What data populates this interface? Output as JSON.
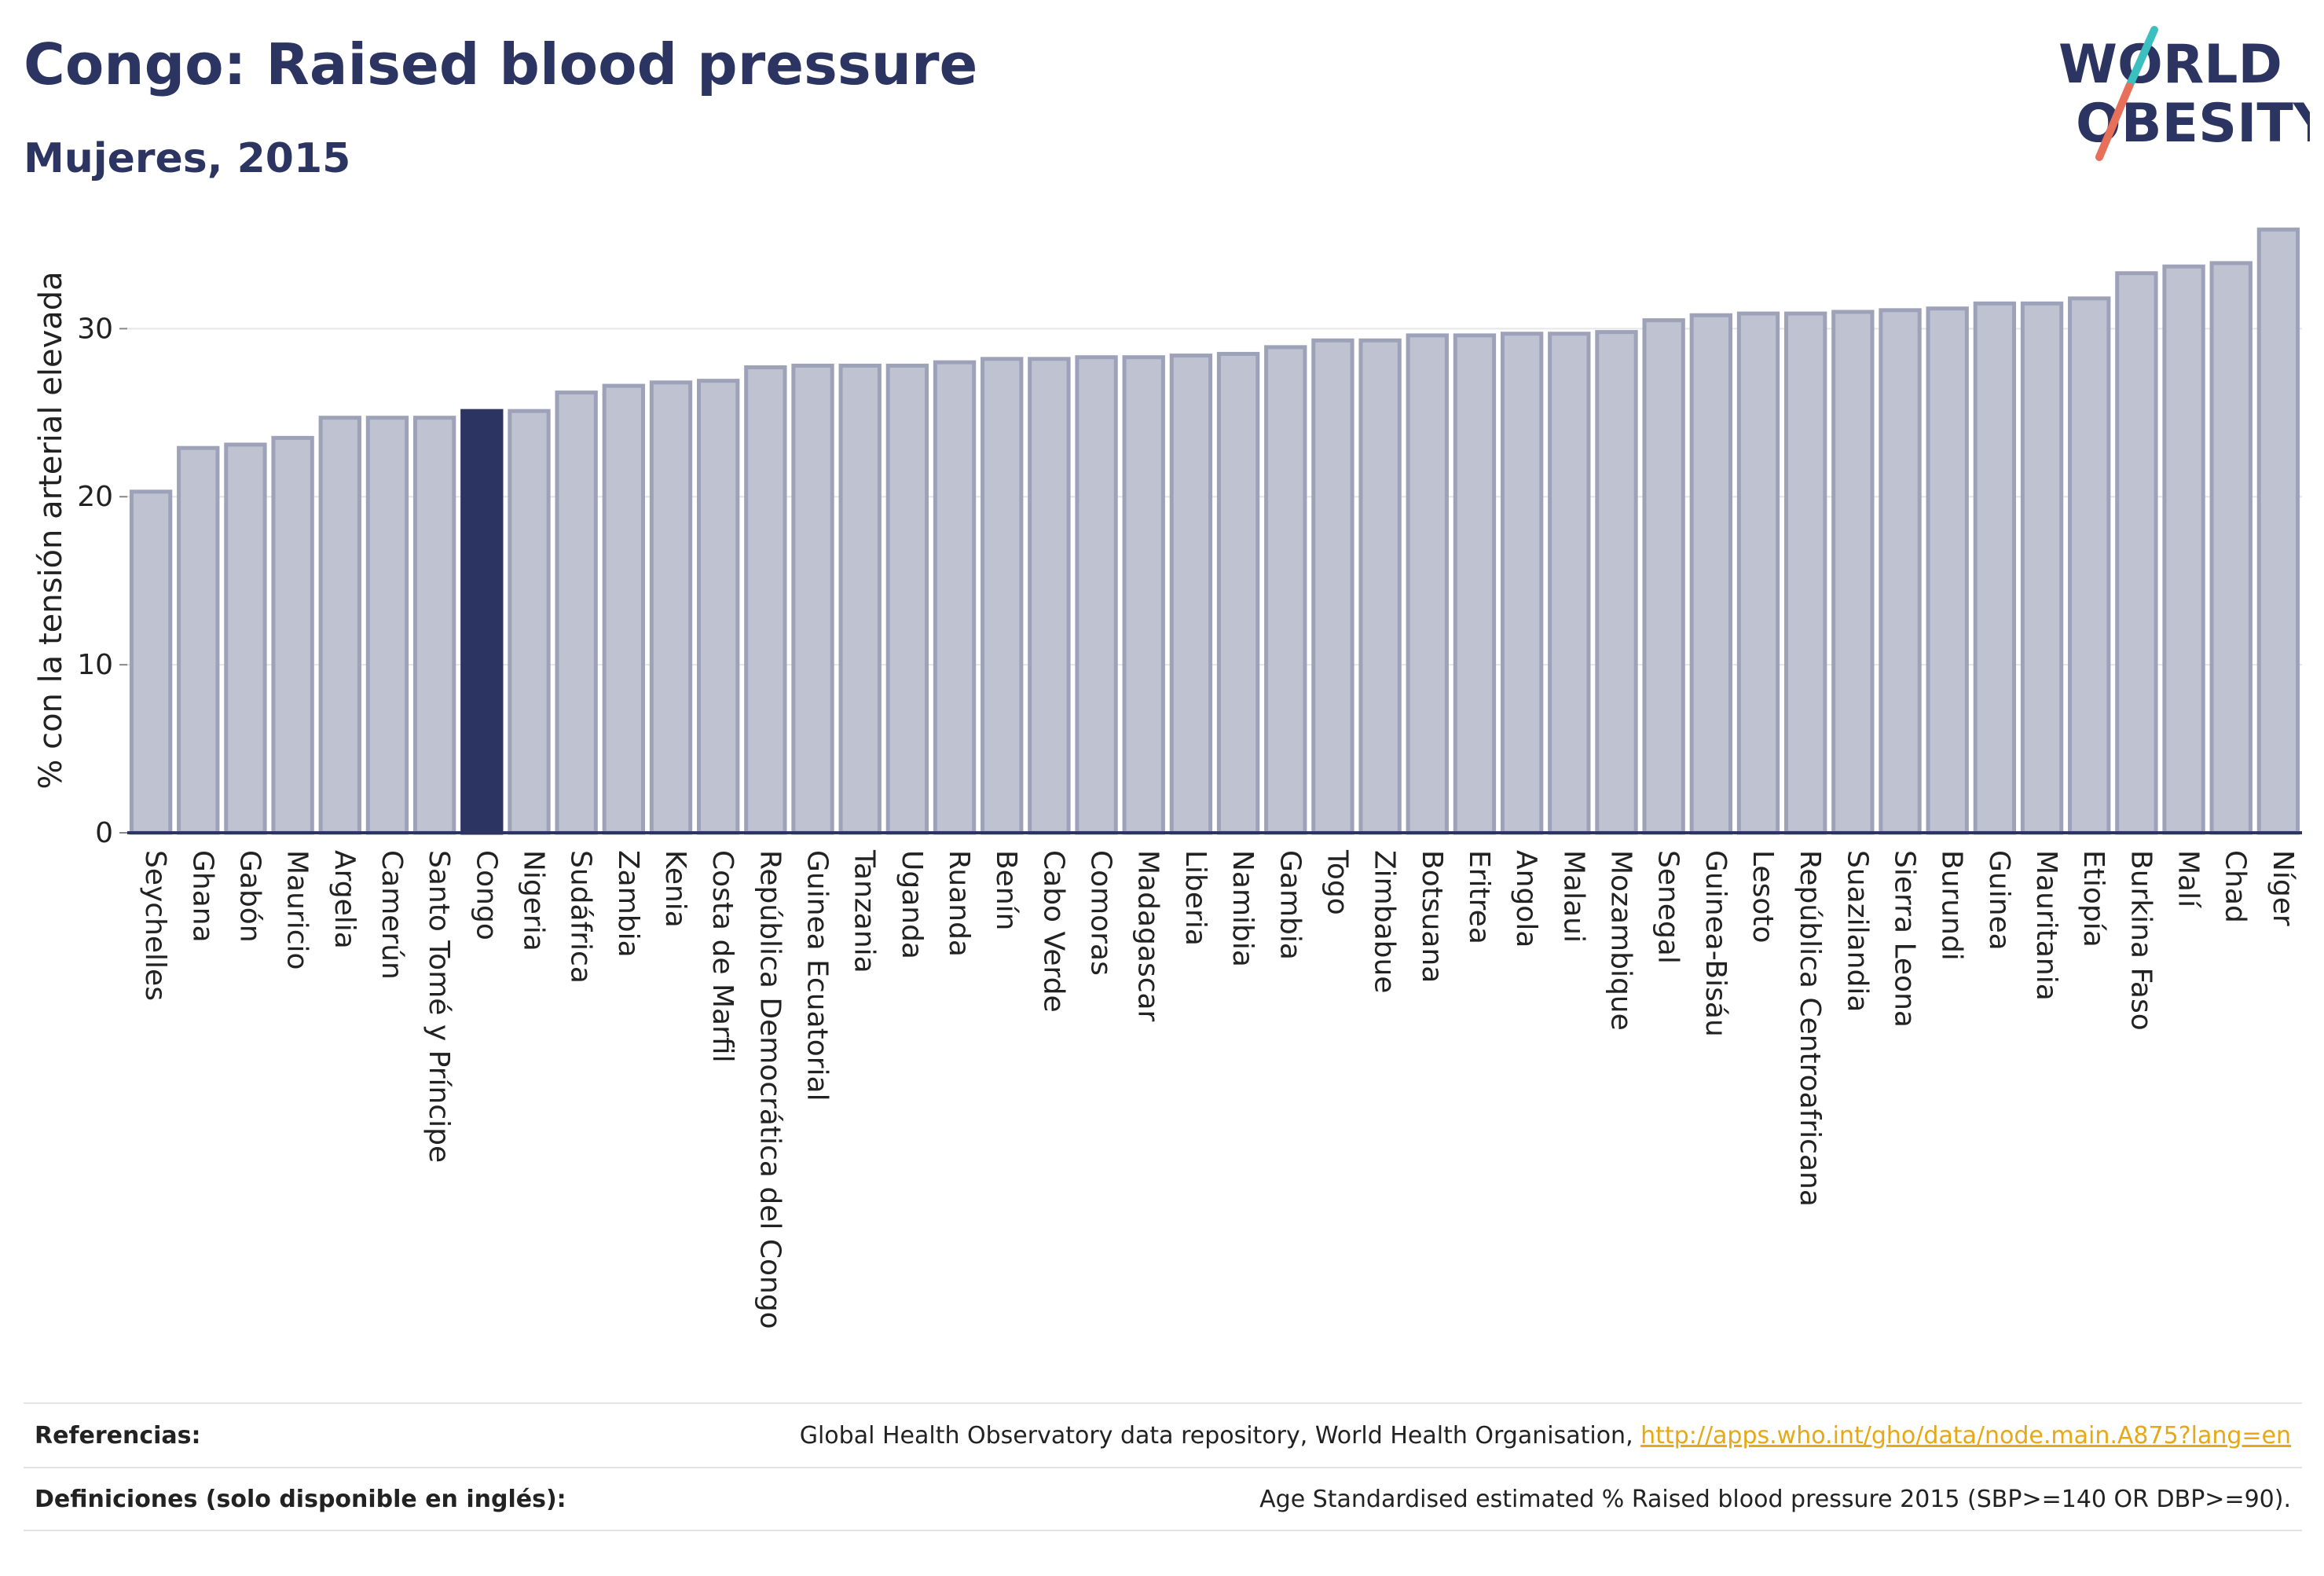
{
  "header": {
    "title": "Congo: Raised blood pressure",
    "subtitle": "Mujeres, 2015"
  },
  "logo": {
    "line1": "WORLD",
    "line2": "OBESITY",
    "colors": {
      "text": "#2c3561",
      "slash_teal": "#3bbfbf",
      "slash_coral": "#e8705a"
    }
  },
  "chart_data": {
    "type": "bar",
    "ylabel": "% con la tensión arterial elevada",
    "ylim": [
      0,
      36
    ],
    "yticks": [
      0,
      10,
      20,
      30
    ],
    "grid": true,
    "highlight": "Congo",
    "colors": {
      "bar": "#bfc2d0",
      "bar_border": "#9da2b8",
      "highlight": "#2c3561"
    },
    "categories": [
      "Seychelles",
      "Ghana",
      "Gabón",
      "Mauricio",
      "Argelia",
      "Camerún",
      "Santo Tomé y Príncipe",
      "Congo",
      "Nigeria",
      "Sudáfrica",
      "Zambia",
      "Kenia",
      "Costa de Marfil",
      "República Democrática del Congo",
      "Guinea Ecuatorial",
      "Tanzania",
      "Uganda",
      "Ruanda",
      "Benín",
      "Cabo Verde",
      "Comoras",
      "Madagascar",
      "Liberia",
      "Namibia",
      "Gambia",
      "Togo",
      "Zimbabue",
      "Botsuana",
      "Eritrea",
      "Angola",
      "Malaui",
      "Mozambique",
      "Senegal",
      "Guinea-Bisáu",
      "Lesoto",
      "República Centroafricana",
      "Suazilandia",
      "Sierra Leona",
      "Burundi",
      "Guinea",
      "Mauritania",
      "Etiopía",
      "Burkina Faso",
      "Malí",
      "Chad",
      "Níger"
    ],
    "values": [
      20.3,
      22.9,
      23.1,
      23.5,
      24.7,
      24.7,
      24.7,
      25.1,
      25.1,
      26.2,
      26.6,
      26.8,
      26.9,
      27.7,
      27.8,
      27.8,
      27.8,
      28.0,
      28.2,
      28.2,
      28.3,
      28.3,
      28.4,
      28.5,
      28.9,
      29.3,
      29.3,
      29.6,
      29.6,
      29.7,
      29.7,
      29.8,
      30.5,
      30.8,
      30.9,
      30.9,
      31.0,
      31.1,
      31.2,
      31.5,
      31.5,
      31.8,
      33.3,
      33.7,
      33.9,
      35.9
    ]
  },
  "footer": {
    "references_label": "Referencias:",
    "references_text": "Global Health Observatory data repository, World Health Organisation, ",
    "references_link": "http://apps.who.int/gho/data/node.main.A875?lang=en",
    "definitions_label": "Definiciones (solo disponible en inglés):",
    "definitions_text": "Age Standardised estimated % Raised blood pressure 2015 (SBP>=140 OR DBP>=90)."
  }
}
